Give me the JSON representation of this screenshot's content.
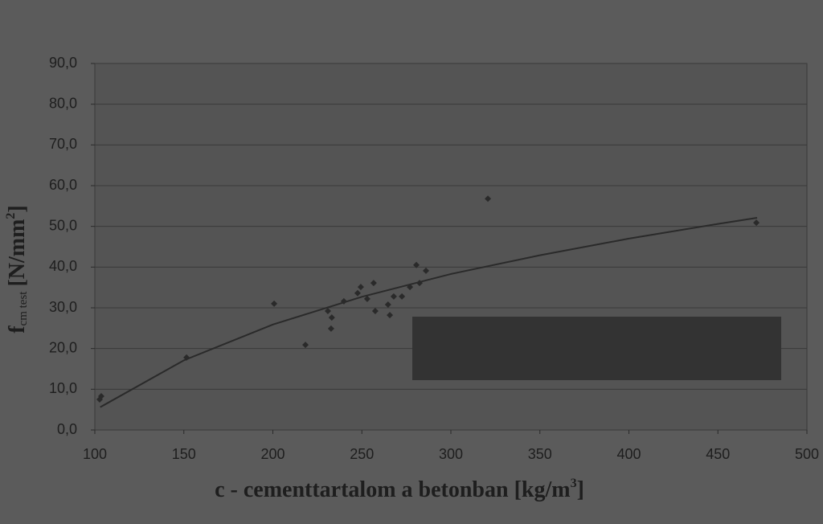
{
  "chart_data": {
    "type": "scatter",
    "xlabel": "c - cementtartalom a betonban [kg/m",
    "xlabel_sup": "3",
    "xlabel_end": "]",
    "ylabel": "f",
    "ylabel_sub": "cm test",
    "ylabel_unit": "[N/mm",
    "ylabel_sup": "2",
    "ylabel_end": "]",
    "xlim": [
      100,
      500
    ],
    "xticks": [
      100,
      150,
      200,
      250,
      300,
      350,
      400,
      450,
      500
    ],
    "ylim": [
      0,
      90
    ],
    "yticks": [
      {
        "value": 0,
        "label": "0,0"
      },
      {
        "value": 10,
        "label": "10,0"
      },
      {
        "value": 20,
        "label": "20,0"
      },
      {
        "value": 30,
        "label": "30,0"
      },
      {
        "value": 40,
        "label": "40,0"
      },
      {
        "value": 50,
        "label": "50,0"
      },
      {
        "value": 60,
        "label": "60,0"
      },
      {
        "value": 70,
        "label": "70,0"
      },
      {
        "value": 80,
        "label": "80,0"
      },
      {
        "value": 90,
        "label": "90,0"
      }
    ],
    "grid": true,
    "series": [
      {
        "type": "scatter",
        "color": "#2a2a2a",
        "x": [
          102.7,
          103.6,
          151.5,
          200.7,
          218.3,
          230.9,
          233.1,
          232.7,
          239.9,
          247.6,
          249.4,
          253.0,
          256.6,
          257.5,
          264.7,
          265.7,
          267.9,
          272.5,
          277.0,
          280.6,
          282.4,
          286.0,
          320.8,
          471.6
        ],
        "values": [
          7.5,
          8.3,
          17.8,
          31.0,
          20.9,
          29.2,
          27.6,
          24.9,
          31.6,
          33.6,
          35.1,
          32.2,
          36.1,
          29.2,
          30.8,
          28.2,
          32.8,
          32.8,
          35.1,
          40.5,
          36.1,
          39.1,
          56.8,
          50.9
        ]
      },
      {
        "type": "line",
        "color": "#2a2a2a",
        "x": [
          103,
          150,
          200,
          250,
          300,
          350,
          400,
          450,
          472
        ],
        "values": [
          5.6,
          17.1,
          25.9,
          32.7,
          38.3,
          42.9,
          47.0,
          50.6,
          52.1
        ]
      }
    ]
  }
}
